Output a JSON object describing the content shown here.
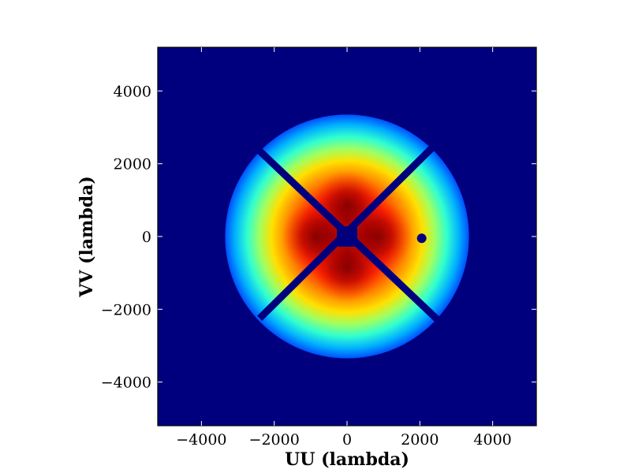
{
  "chart_data": {
    "type": "heatmap",
    "title": "",
    "xlabel": "UU (lambda)",
    "ylabel": "VV (lambda)",
    "xlim": [
      -5200,
      5200
    ],
    "ylim": [
      -5200,
      5200
    ],
    "xticks": [
      -4000,
      -2000,
      0,
      2000,
      4000
    ],
    "yticks": [
      -4000,
      -2000,
      0,
      2000,
      4000
    ],
    "xtick_labels": [
      "−4000",
      "−2000",
      "0",
      "2000",
      "4000"
    ],
    "ytick_labels": [
      "−4000",
      "−2000",
      "0",
      "2000",
      "4000"
    ],
    "grid": false,
    "legend": "none",
    "colormap": "jet",
    "background_color": "#00007f",
    "disk": {
      "center": [
        0,
        0
      ],
      "radius": 3350
    },
    "intensity_peaks": [
      {
        "x": 0,
        "y": 850
      },
      {
        "x": 0,
        "y": -850
      },
      {
        "x": -850,
        "y": 0
      },
      {
        "x": 850,
        "y": 0
      }
    ],
    "masks": [
      {
        "type": "line",
        "from": [
          -2400,
          -2250
        ],
        "to": [
          2500,
          2600
        ]
      },
      {
        "type": "line",
        "from": [
          -2400,
          2350
        ],
        "to": [
          2500,
          -2300
        ]
      },
      {
        "type": "square",
        "center": [
          0,
          0
        ],
        "half_size": 280
      },
      {
        "type": "dot",
        "center": [
          2050,
          -50
        ],
        "radius": 130
      }
    ]
  }
}
